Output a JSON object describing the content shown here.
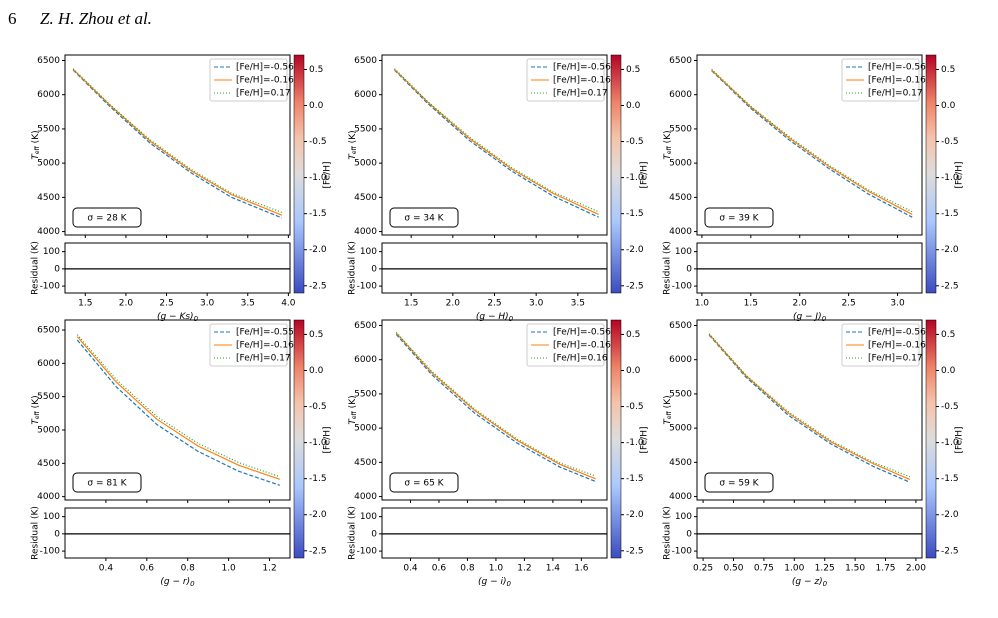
{
  "header": {
    "page": "6",
    "authors": "Z. H. Zhou et al."
  },
  "labels": {
    "teff_symbol": "T",
    "teff_sub": "eff",
    "teff_unit": "(K)",
    "residual": "Residual (K)",
    "colorbar": "[Fe/H]"
  },
  "colorbar": {
    "lim": [
      -2.6,
      0.7
    ],
    "ticks": [
      0.5,
      {
        "value": 0,
        "label": "0.0"
      },
      -0.5,
      {
        "value": -1,
        "label": "-1.0"
      },
      -1.5,
      {
        "value": -2,
        "label": "-2.0"
      },
      -2.5
    ]
  },
  "chart_data": [
    {
      "type": "line",
      "xlabel": "(g − Ks)",
      "xlabel_sub": "0",
      "sigma": "σ = 28 K",
      "xlim": [
        1.25,
        4.02
      ],
      "xticks": [
        1.5,
        {
          "value": 2,
          "label": "2.0"
        },
        2.5,
        {
          "value": 3,
          "label": "3.0"
        },
        3.5,
        {
          "value": 4,
          "label": "4.0"
        }
      ],
      "ylim": [
        3950,
        6580
      ],
      "yticks": [
        4000,
        4500,
        5000,
        5500,
        6000,
        6500
      ],
      "rlim": [
        -140,
        150
      ],
      "rticks": [
        -100,
        0,
        100
      ],
      "x": [
        1.35,
        1.8,
        2.3,
        2.8,
        3.3,
        3.92
      ],
      "series": [
        {
          "name": "[Fe/H]=-0.56",
          "color": "#1f77b4",
          "style": "dashed",
          "values": [
            6360,
            5830,
            5290,
            4860,
            4500,
            4200
          ]
        },
        {
          "name": "[Fe/H]=-0.16",
          "color": "#ff7f0e",
          "style": "solid",
          "values": [
            6370,
            5850,
            5320,
            4890,
            4540,
            4240
          ]
        },
        {
          "name": "[Fe/H]=0.17",
          "color": "#2ca02c",
          "style": "dotted",
          "values": [
            6380,
            5860,
            5340,
            4910,
            4560,
            4280
          ]
        }
      ]
    },
    {
      "type": "line",
      "xlabel": "(g − H)",
      "xlabel_sub": "0",
      "sigma": "σ = 34 K",
      "xlim": [
        1.15,
        3.85
      ],
      "xticks": [
        1.5,
        {
          "value": 2,
          "label": "2.0"
        },
        2.5,
        {
          "value": 3,
          "label": "3.0"
        },
        3.5
      ],
      "ylim": [
        3950,
        6580
      ],
      "yticks": [
        4000,
        4500,
        5000,
        5500,
        6000,
        6500
      ],
      "rlim": [
        -140,
        150
      ],
      "rticks": [
        -100,
        0,
        100
      ],
      "x": [
        1.3,
        1.7,
        2.2,
        2.7,
        3.2,
        3.75
      ],
      "series": [
        {
          "name": "[Fe/H]=-0.56",
          "color": "#1f77b4",
          "style": "dashed",
          "values": [
            6360,
            5870,
            5330,
            4890,
            4520,
            4210
          ]
        },
        {
          "name": "[Fe/H]=-0.16",
          "color": "#ff7f0e",
          "style": "solid",
          "values": [
            6370,
            5890,
            5360,
            4920,
            4560,
            4250
          ]
        },
        {
          "name": "[Fe/H]=0.17",
          "color": "#2ca02c",
          "style": "dotted",
          "values": [
            6380,
            5900,
            5380,
            4940,
            4580,
            4290
          ]
        }
      ]
    },
    {
      "type": "line",
      "xlabel": "(g − J)",
      "xlabel_sub": "0",
      "sigma": "σ = 39 K",
      "xlim": [
        0.95,
        3.25
      ],
      "xticks": [
        {
          "value": 1,
          "label": "1.0"
        },
        1.5,
        {
          "value": 2,
          "label": "2.0"
        },
        2.5,
        {
          "value": 3,
          "label": "3.0"
        }
      ],
      "ylim": [
        3950,
        6580
      ],
      "yticks": [
        4000,
        4500,
        5000,
        5500,
        6000,
        6500
      ],
      "rlim": [
        -140,
        150
      ],
      "rticks": [
        -100,
        0,
        100
      ],
      "x": [
        1.1,
        1.5,
        1.9,
        2.3,
        2.7,
        3.15
      ],
      "series": [
        {
          "name": "[Fe/H]=-0.56",
          "color": "#1f77b4",
          "style": "dashed",
          "values": [
            6350,
            5800,
            5330,
            4920,
            4550,
            4210
          ]
        },
        {
          "name": "[Fe/H]=-0.16",
          "color": "#ff7f0e",
          "style": "solid",
          "values": [
            6360,
            5820,
            5360,
            4950,
            4590,
            4250
          ]
        },
        {
          "name": "[Fe/H]=0.17",
          "color": "#2ca02c",
          "style": "dotted",
          "values": [
            6370,
            5830,
            5380,
            4970,
            4610,
            4290
          ]
        }
      ]
    },
    {
      "type": "line",
      "xlabel": "(g − r)",
      "xlabel_sub": "0",
      "sigma": "σ = 81 K",
      "xlim": [
        0.2,
        1.3
      ],
      "xticks": [
        0.4,
        0.6,
        0.8,
        {
          "value": 1,
          "label": "1.0"
        },
        1.2
      ],
      "ylim": [
        3950,
        6650
      ],
      "yticks": [
        4000,
        4500,
        5000,
        5500,
        6000,
        6500
      ],
      "rlim": [
        -140,
        150
      ],
      "rticks": [
        -100,
        0,
        100
      ],
      "x": [
        0.26,
        0.45,
        0.65,
        0.85,
        1.05,
        1.25
      ],
      "series": [
        {
          "name": "[Fe/H]=-0.55",
          "color": "#1f77b4",
          "style": "dashed",
          "values": [
            6350,
            5650,
            5080,
            4680,
            4380,
            4170
          ]
        },
        {
          "name": "[Fe/H]=-0.16",
          "color": "#ff7f0e",
          "style": "solid",
          "values": [
            6400,
            5720,
            5160,
            4760,
            4470,
            4260
          ]
        },
        {
          "name": "[Fe/H]=0.17",
          "color": "#2ca02c",
          "style": "dotted",
          "values": [
            6430,
            5760,
            5200,
            4800,
            4510,
            4300
          ]
        }
      ]
    },
    {
      "type": "line",
      "xlabel": "(g − i)",
      "xlabel_sub": "0",
      "sigma": "σ = 65 K",
      "xlim": [
        0.2,
        1.78
      ],
      "xticks": [
        0.4,
        0.6,
        0.8,
        {
          "value": 1,
          "label": "1.0"
        },
        1.2,
        1.4,
        1.6
      ],
      "ylim": [
        3950,
        6580
      ],
      "yticks": [
        4000,
        4500,
        5000,
        5500,
        6000,
        6500
      ],
      "rlim": [
        -140,
        150
      ],
      "rticks": [
        -100,
        0,
        100
      ],
      "x": [
        0.3,
        0.55,
        0.85,
        1.15,
        1.45,
        1.7
      ],
      "series": [
        {
          "name": "[Fe/H]=-0.56",
          "color": "#1f77b4",
          "style": "dashed",
          "values": [
            6370,
            5780,
            5220,
            4780,
            4430,
            4220
          ]
        },
        {
          "name": "[Fe/H]=-0.16",
          "color": "#ff7f0e",
          "style": "solid",
          "values": [
            6390,
            5810,
            5260,
            4820,
            4470,
            4260
          ]
        },
        {
          "name": "[Fe/H]=0.16",
          "color": "#2ca02c",
          "style": "dotted",
          "values": [
            6400,
            5830,
            5280,
            4840,
            4490,
            4300
          ]
        }
      ]
    },
    {
      "type": "line",
      "xlabel": "(g − z)",
      "xlabel_sub": "0",
      "sigma": "σ = 59 K",
      "xlim": [
        0.2,
        2.05
      ],
      "xticks": [
        0.25,
        {
          "value": 0.5,
          "label": "0.50"
        },
        0.75,
        {
          "value": 1,
          "label": "1.00"
        },
        1.25,
        {
          "value": 1.5,
          "label": "1.50"
        },
        1.75,
        {
          "value": 2,
          "label": "2.00"
        }
      ],
      "ylim": [
        3950,
        6580
      ],
      "yticks": [
        4000,
        4500,
        5000,
        5500,
        6000,
        6500
      ],
      "rlim": [
        -140,
        150
      ],
      "rticks": [
        -100,
        0,
        100
      ],
      "x": [
        0.3,
        0.6,
        0.95,
        1.3,
        1.65,
        1.95
      ],
      "series": [
        {
          "name": "[Fe/H]=-0.56",
          "color": "#1f77b4",
          "style": "dashed",
          "values": [
            6360,
            5750,
            5190,
            4770,
            4440,
            4210
          ]
        },
        {
          "name": "[Fe/H]=-0.16",
          "color": "#ff7f0e",
          "style": "solid",
          "values": [
            6370,
            5770,
            5220,
            4800,
            4480,
            4250
          ]
        },
        {
          "name": "[Fe/H]=0.17",
          "color": "#2ca02c",
          "style": "dotted",
          "values": [
            6380,
            5780,
            5240,
            4820,
            4500,
            4290
          ]
        }
      ]
    }
  ]
}
